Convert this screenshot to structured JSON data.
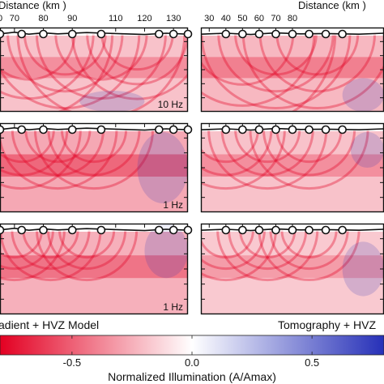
{
  "chart_data": {
    "type": "heatmap",
    "colorbar": {
      "label": "Normalized Illumination (A/Amax)",
      "range": [
        -0.8,
        0.8
      ],
      "ticks": [
        {
          "value": -0.5,
          "label": "-0.5"
        },
        {
          "value": 0,
          "label": "0.0"
        },
        {
          "value": 0.5,
          "label": "0.5"
        }
      ],
      "colors": {
        "negative": "#e30022",
        "zero": "#ffffff",
        "positive": "#2630b8"
      }
    },
    "columns": [
      {
        "xlabel": "Distance (km )",
        "xlim": [
          0,
          130
        ],
        "xticks": [
          {
            "value": 0,
            "label": "0"
          },
          {
            "value": 10,
            "label": "70"
          },
          {
            "value": 30,
            "label": "80"
          },
          {
            "value": 50,
            "label": "90"
          },
          {
            "value": 80,
            "label": "110"
          },
          {
            "value": 100,
            "label": "120"
          },
          {
            "value": 120,
            "label": "130"
          }
        ],
        "model_label": "adient + HVZ Model",
        "stations": [
          0,
          15,
          30,
          50,
          70,
          110,
          120,
          130
        ],
        "topography": [
          [
            0,
            0.3
          ],
          [
            10,
            0.8
          ],
          [
            20,
            0.2
          ],
          [
            30,
            0.6
          ],
          [
            40,
            0.3
          ],
          [
            60,
            0.7
          ],
          [
            80,
            0.4
          ],
          [
            100,
            0.1
          ],
          [
            115,
            0.5
          ],
          [
            130,
            0.2
          ]
        ],
        "panels": [
          {
            "freq_label": "10 Hz",
            "mean_illumination": -0.35,
            "rays": [
              [
                20,
                0.9
              ],
              [
                45,
                0.8
              ],
              [
                70,
                0.9
              ],
              [
                95,
                0.7
              ]
            ],
            "blue_zone": [
              55,
              100,
              0.75,
              1.0
            ]
          },
          {
            "freq_label": "1 Hz",
            "mean_illumination": -0.5,
            "rays": [
              [
                15,
                0.6
              ],
              [
                40,
                0.6
              ],
              [
                65,
                0.6
              ]
            ],
            "blue_zone": [
              95,
              130,
              0.1,
              0.9
            ]
          },
          {
            "freq_label": "1 Hz",
            "mean_illumination": -0.45,
            "rays": [
              [
                10,
                0.5
              ],
              [
                35,
                0.5
              ],
              [
                60,
                0.5
              ]
            ],
            "blue_zone": [
              100,
              130,
              0.0,
              0.6
            ]
          }
        ]
      },
      {
        "xlabel": "Distance (km )",
        "xlim": [
          25,
          135
        ],
        "xticks": [
          {
            "value": 30,
            "label": "30"
          },
          {
            "value": 40,
            "label": "40"
          },
          {
            "value": 50,
            "label": "50"
          },
          {
            "value": 60,
            "label": "60"
          },
          {
            "value": 70,
            "label": "70"
          },
          {
            "value": 80,
            "label": "80"
          }
        ],
        "model_label": "Tomography + HVZ",
        "stations": [
          40,
          50,
          60,
          70,
          80,
          90,
          100,
          110
        ],
        "topography": [
          [
            25,
            0.2
          ],
          [
            40,
            0.5
          ],
          [
            55,
            0.1
          ],
          [
            70,
            0.6
          ],
          [
            85,
            0.3
          ],
          [
            100,
            0.4
          ],
          [
            120,
            0.2
          ],
          [
            135,
            0.5
          ]
        ],
        "panels": [
          {
            "freq_label": "",
            "mean_illumination": -0.4,
            "rays": [
              [
                50,
                1.0
              ],
              [
                70,
                0.8
              ],
              [
                95,
                0.8
              ]
            ],
            "blue_zone": [
              110,
              135,
              0.6,
              1.0
            ]
          },
          {
            "freq_label": "",
            "mean_illumination": -0.35,
            "rays": [
              [
                40,
                0.6
              ],
              [
                65,
                0.6
              ],
              [
                90,
                0.6
              ]
            ],
            "blue_zone": [
              115,
              135,
              0.1,
              0.5
            ]
          },
          {
            "freq_label": "",
            "mean_illumination": -0.3,
            "rays": [
              [
                40,
                0.5
              ],
              [
                65,
                0.5
              ],
              [
                90,
                0.5
              ]
            ],
            "blue_zone": [
              110,
              135,
              0.2,
              0.8
            ]
          }
        ]
      }
    ]
  }
}
